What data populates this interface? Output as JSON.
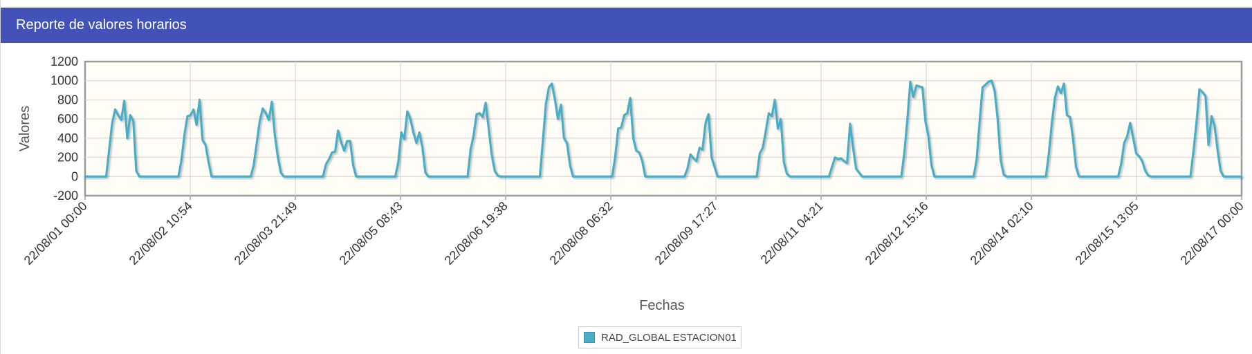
{
  "panel": {
    "title": "Reporte de valores horarios"
  },
  "colors": {
    "header": "#4352b8",
    "series": "#4bacc6",
    "plot_background": "#fffdf6"
  },
  "chart_data": {
    "type": "line",
    "xlabel": "Fechas",
    "ylabel": "Valores",
    "ylim": [
      -200,
      1200
    ],
    "yticks": [
      -200,
      0,
      200,
      400,
      600,
      800,
      1000,
      1200
    ],
    "xlim": [
      "22/08/01 00:00",
      "22/08/17 00:00"
    ],
    "xtick_labels": [
      "22/08/01 00:00",
      "22/08/02 10:54",
      "22/08/03 21:49",
      "22/08/05 08:43",
      "22/08/06 19:38",
      "22/08/08 06:32",
      "22/08/09 17:27",
      "22/08/11 04:21",
      "22/08/12 15:16",
      "22/08/14 02:10",
      "22/08/15 13:05",
      "22/08/17 00:00"
    ],
    "grid": true,
    "legend_position": "bottom-center",
    "x_hours_note": "hourly samples from 22/08/01 00:00 to 22/08/17 00:00",
    "series": [
      {
        "name": "RAD_GLOBAL ESTACION01",
        "daily_peaks": [
          [
            [
              8,
              280
            ],
            [
              9,
              560
            ],
            [
              10,
              700
            ],
            [
              11,
              640
            ],
            [
              12,
              590
            ],
            [
              13,
              790
            ],
            [
              14,
              400
            ],
            [
              15,
              640
            ],
            [
              16,
              580
            ],
            [
              17,
              60
            ]
          ],
          [
            [
              8,
              170
            ],
            [
              9,
              440
            ],
            [
              10,
              630
            ],
            [
              11,
              640
            ],
            [
              12,
              700
            ],
            [
              13,
              540
            ],
            [
              14,
              800
            ],
            [
              15,
              380
            ],
            [
              16,
              330
            ],
            [
              17,
              150
            ]
          ],
          [
            [
              8,
              120
            ],
            [
              9,
              350
            ],
            [
              10,
              580
            ],
            [
              11,
              710
            ],
            [
              12,
              660
            ],
            [
              13,
              590
            ],
            [
              14,
              780
            ],
            [
              15,
              430
            ],
            [
              16,
              200
            ],
            [
              17,
              40
            ]
          ],
          [
            [
              8,
              130
            ],
            [
              9,
              180
            ],
            [
              10,
              250
            ],
            [
              11,
              260
            ],
            [
              12,
              480
            ],
            [
              13,
              360
            ],
            [
              14,
              270
            ],
            [
              15,
              370
            ],
            [
              16,
              370
            ],
            [
              17,
              120
            ]
          ],
          [
            [
              8,
              150
            ],
            [
              9,
              460
            ],
            [
              10,
              390
            ],
            [
              11,
              680
            ],
            [
              12,
              600
            ],
            [
              13,
              460
            ],
            [
              14,
              350
            ],
            [
              15,
              460
            ],
            [
              16,
              300
            ],
            [
              17,
              40
            ]
          ],
          [
            [
              8,
              280
            ],
            [
              9,
              430
            ],
            [
              10,
              650
            ],
            [
              11,
              660
            ],
            [
              12,
              620
            ],
            [
              13,
              770
            ],
            [
              14,
              500
            ],
            [
              15,
              230
            ],
            [
              16,
              60
            ],
            [
              17,
              10
            ]
          ],
          [
            [
              8,
              370
            ],
            [
              9,
              760
            ],
            [
              10,
              930
            ],
            [
              11,
              970
            ],
            [
              12,
              800
            ],
            [
              13,
              600
            ],
            [
              14,
              750
            ],
            [
              15,
              400
            ],
            [
              16,
              350
            ],
            [
              17,
              120
            ]
          ],
          [
            [
              8,
              200
            ],
            [
              9,
              500
            ],
            [
              10,
              510
            ],
            [
              11,
              640
            ],
            [
              12,
              660
            ],
            [
              13,
              820
            ],
            [
              14,
              400
            ],
            [
              15,
              270
            ],
            [
              16,
              250
            ],
            [
              17,
              160
            ]
          ],
          [
            [
              8,
              80
            ],
            [
              9,
              230
            ],
            [
              10,
              190
            ],
            [
              11,
              160
            ],
            [
              12,
              300
            ],
            [
              13,
              280
            ],
            [
              14,
              560
            ],
            [
              15,
              650
            ],
            [
              16,
              200
            ],
            [
              17,
              100
            ]
          ],
          [
            [
              8,
              240
            ],
            [
              9,
              300
            ],
            [
              10,
              470
            ],
            [
              11,
              660
            ],
            [
              12,
              630
            ],
            [
              13,
              800
            ],
            [
              14,
              500
            ],
            [
              15,
              600
            ],
            [
              16,
              150
            ],
            [
              17,
              30
            ]
          ],
          [
            [
              8,
              100
            ],
            [
              9,
              200
            ],
            [
              10,
              180
            ],
            [
              11,
              190
            ],
            [
              12,
              160
            ],
            [
              13,
              140
            ],
            [
              14,
              550
            ],
            [
              15,
              300
            ],
            [
              16,
              80
            ],
            [
              17,
              40
            ]
          ],
          [
            [
              8,
              240
            ],
            [
              9,
              590
            ],
            [
              10,
              990
            ],
            [
              11,
              830
            ],
            [
              12,
              950
            ],
            [
              13,
              940
            ],
            [
              14,
              930
            ],
            [
              15,
              580
            ],
            [
              16,
              420
            ],
            [
              17,
              120
            ]
          ],
          [
            [
              8,
              170
            ],
            [
              9,
              570
            ],
            [
              10,
              930
            ],
            [
              11,
              960
            ],
            [
              12,
              990
            ],
            [
              13,
              1000
            ],
            [
              14,
              890
            ],
            [
              15,
              600
            ],
            [
              16,
              170
            ],
            [
              17,
              20
            ]
          ],
          [
            [
              8,
              240
            ],
            [
              9,
              560
            ],
            [
              10,
              820
            ],
            [
              11,
              940
            ],
            [
              12,
              870
            ],
            [
              13,
              970
            ],
            [
              14,
              640
            ],
            [
              15,
              620
            ],
            [
              16,
              400
            ],
            [
              17,
              100
            ]
          ],
          [
            [
              8,
              130
            ],
            [
              9,
              350
            ],
            [
              10,
              420
            ],
            [
              11,
              560
            ],
            [
              12,
              400
            ],
            [
              13,
              240
            ],
            [
              14,
              210
            ],
            [
              15,
              160
            ],
            [
              16,
              60
            ],
            [
              17,
              10
            ]
          ],
          [
            [
              8,
              260
            ],
            [
              9,
              560
            ],
            [
              10,
              910
            ],
            [
              11,
              880
            ],
            [
              12,
              840
            ],
            [
              13,
              330
            ],
            [
              14,
              630
            ],
            [
              15,
              530
            ],
            [
              16,
              280
            ],
            [
              17,
              60
            ]
          ]
        ]
      }
    ]
  }
}
